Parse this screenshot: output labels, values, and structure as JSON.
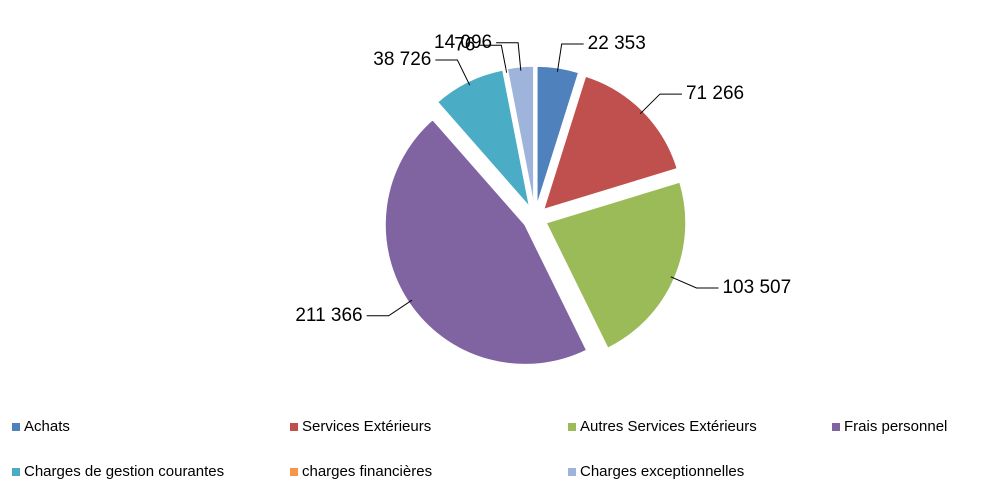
{
  "chart_data": {
    "type": "pie",
    "categories": [
      "Achats",
      "Services Extérieurs",
      "Autres Services Extérieurs",
      "Frais personnel",
      "Charges de gestion courantes",
      "charges financières",
      "Charges exceptionnelles"
    ],
    "values": [
      22353,
      71266,
      103507,
      211366,
      38726,
      76,
      14096
    ],
    "value_labels": [
      "22 353",
      "71 266",
      "103 507",
      "211 366",
      "38 726",
      "76",
      "14 096"
    ],
    "colors": [
      "#4f81bd",
      "#c0504d",
      "#9bbb59",
      "#8064a2",
      "#4bacc6",
      "#f79646",
      "#9fb4da"
    ],
    "legend": "bottom"
  }
}
